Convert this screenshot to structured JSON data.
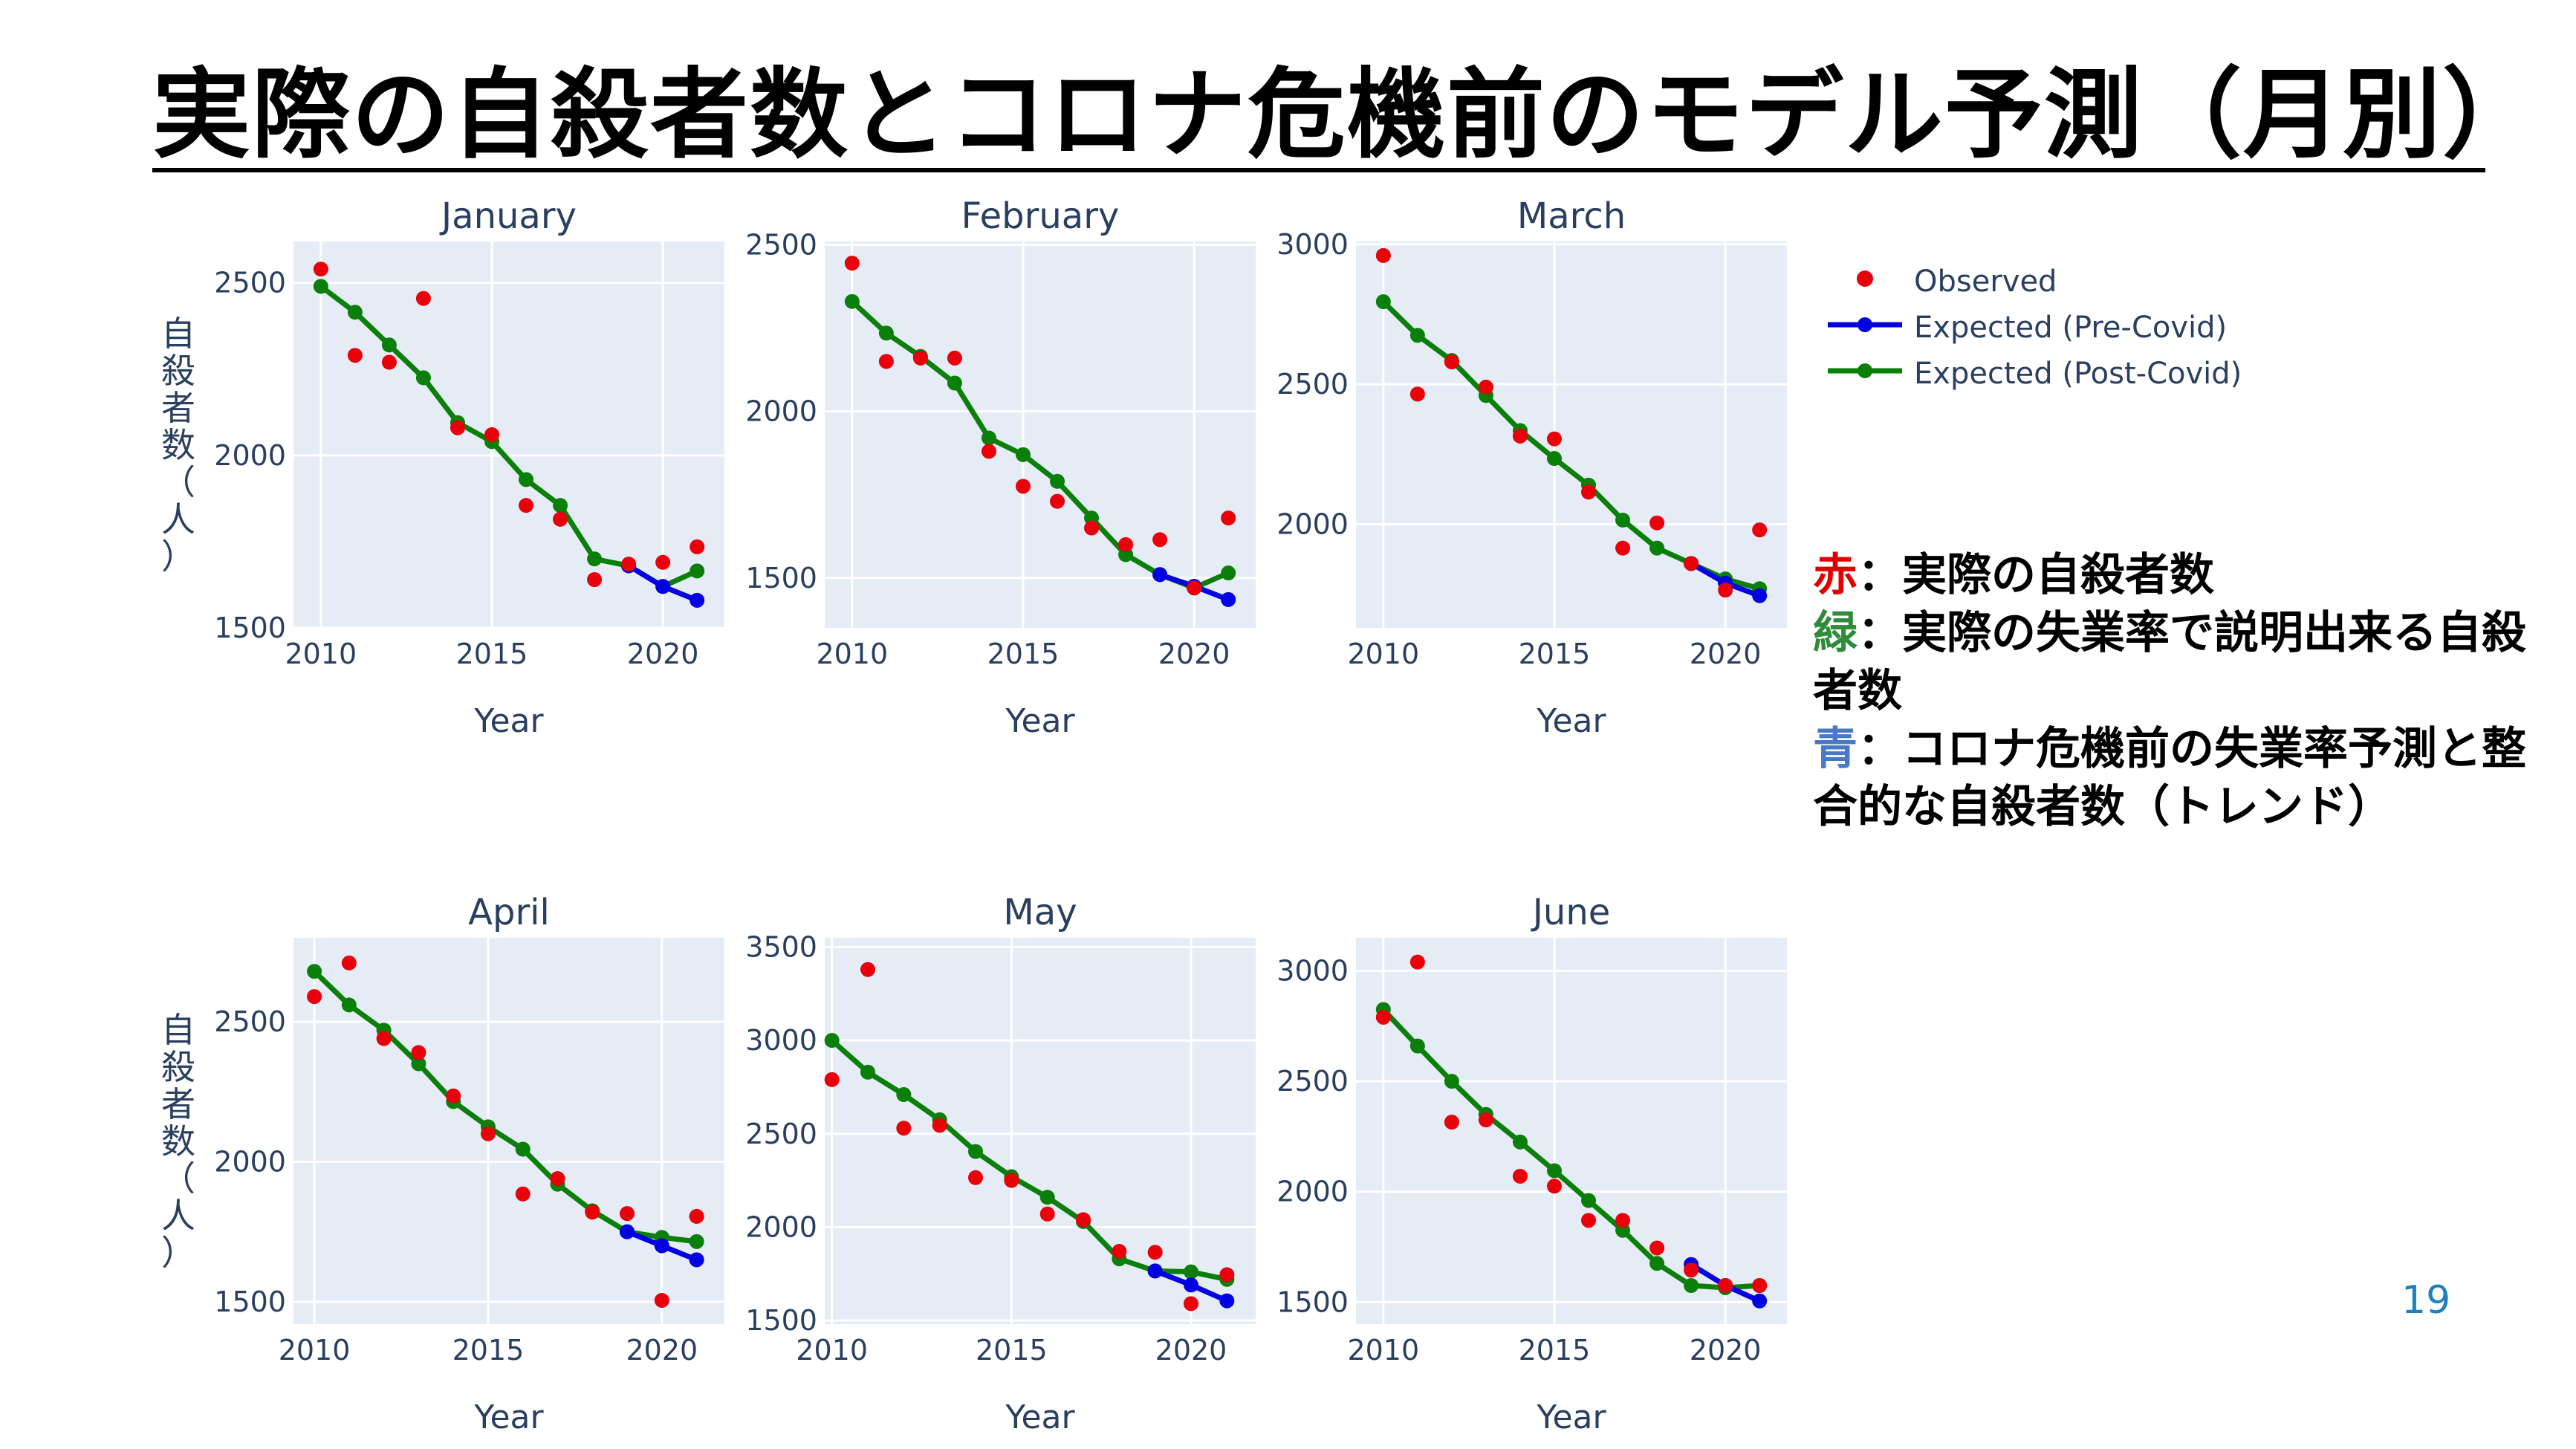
{
  "slide": {
    "title": "実際の自殺者数とコロナ危機前のモデル予測（月別）",
    "page_number": "19"
  },
  "legend": {
    "items": [
      {
        "label": "Observed",
        "color": "#e8000b",
        "kind": "marker"
      },
      {
        "label": "Expected (Pre-Covid)",
        "color": "#0000e0",
        "kind": "line"
      },
      {
        "label": "Expected (Post-Covid)",
        "color": "#0a7f0a",
        "kind": "line"
      }
    ]
  },
  "explanation": {
    "red_key": "赤",
    "red_text": "：実際の自殺者数",
    "green_key": "緑",
    "green_text": "：実際の失業率で説明出来る自殺者数",
    "blue_key": "青",
    "blue_text": "：コロナ危機前の失業率予測と整合的な自殺者数（トレンド）",
    "colors": {
      "red": "#e00000",
      "green": "#2e8b3a",
      "blue": "#4a78c8"
    }
  },
  "chart_data": [
    {
      "type": "scatter",
      "title": "January",
      "xlabel": "Year",
      "ylabel": "自殺者数（人）",
      "xlim": [
        2009.2,
        2021.8
      ],
      "ylim": [
        1500,
        2620
      ],
      "xticks": [
        2010,
        2015,
        2020
      ],
      "yticks": [
        1500,
        2000,
        2500
      ],
      "x": [
        2010,
        2011,
        2012,
        2013,
        2014,
        2015,
        2016,
        2017,
        2018,
        2019,
        2020,
        2021
      ],
      "series": [
        {
          "name": "Observed",
          "mode": "markers",
          "color": "#e8000b",
          "values": [
            2540,
            2290,
            2270,
            2455,
            2080,
            2060,
            1855,
            1815,
            1640,
            1685,
            1690,
            1735
          ]
        },
        {
          "name": "Expected (Pre-Covid)",
          "mode": "lines+markers",
          "color": "#0000e0",
          "x": [
            2019,
            2020,
            2021
          ],
          "values": [
            1680,
            1620,
            1580
          ]
        },
        {
          "name": "Expected (Post-Covid)",
          "mode": "lines+markers",
          "color": "#0a7f0a",
          "values": [
            2490,
            2415,
            2320,
            2225,
            2095,
            2040,
            1930,
            1855,
            1700,
            1680,
            1620,
            1665
          ]
        }
      ]
    },
    {
      "type": "scatter",
      "title": "February",
      "xlabel": "Year",
      "ylabel": "",
      "xlim": [
        2009.2,
        2021.8
      ],
      "ylim": [
        1350,
        2510
      ],
      "xticks": [
        2010,
        2015,
        2020
      ],
      "yticks": [
        1500,
        2000,
        2500
      ],
      "x": [
        2010,
        2011,
        2012,
        2013,
        2014,
        2015,
        2016,
        2017,
        2018,
        2019,
        2020,
        2021
      ],
      "series": [
        {
          "name": "Observed",
          "mode": "markers",
          "color": "#e8000b",
          "values": [
            2445,
            2150,
            2160,
            2160,
            1880,
            1775,
            1730,
            1650,
            1600,
            1615,
            1470,
            1680
          ]
        },
        {
          "name": "Expected (Pre-Covid)",
          "mode": "lines+markers",
          "color": "#0000e0",
          "x": [
            2019,
            2020,
            2021
          ],
          "values": [
            1510,
            1475,
            1435
          ]
        },
        {
          "name": "Expected (Post-Covid)",
          "mode": "lines+markers",
          "color": "#0a7f0a",
          "values": [
            2330,
            2235,
            2165,
            2085,
            1920,
            1870,
            1790,
            1680,
            1570,
            1510,
            1470,
            1515
          ]
        }
      ]
    },
    {
      "type": "scatter",
      "title": "March",
      "xlabel": "Year",
      "ylabel": "",
      "xlim": [
        2009.2,
        2021.8
      ],
      "ylim": [
        1630,
        3010
      ],
      "xticks": [
        2010,
        2015,
        2020
      ],
      "yticks": [
        2000,
        2500,
        3000
      ],
      "x": [
        2010,
        2011,
        2012,
        2013,
        2014,
        2015,
        2016,
        2017,
        2018,
        2019,
        2020,
        2021
      ],
      "series": [
        {
          "name": "Observed",
          "mode": "markers",
          "color": "#e8000b",
          "values": [
            2960,
            2465,
            2580,
            2490,
            2315,
            2305,
            2115,
            1915,
            2005,
            1860,
            1765,
            1980
          ]
        },
        {
          "name": "Expected (Pre-Covid)",
          "mode": "lines+markers",
          "color": "#0000e0",
          "x": [
            2019,
            2020,
            2021
          ],
          "values": [
            1860,
            1790,
            1745
          ]
        },
        {
          "name": "Expected (Post-Covid)",
          "mode": "lines+markers",
          "color": "#0a7f0a",
          "values": [
            2795,
            2675,
            2585,
            2460,
            2335,
            2235,
            2140,
            2015,
            1915,
            1860,
            1805,
            1770
          ]
        }
      ]
    },
    {
      "type": "scatter",
      "title": "April",
      "xlabel": "Year",
      "ylabel": "自殺者数（人）",
      "xlim": [
        2009.4,
        2021.8
      ],
      "ylim": [
        1420,
        2800
      ],
      "xticks": [
        2010,
        2015,
        2020
      ],
      "yticks": [
        1500,
        2000,
        2500
      ],
      "x": [
        2010,
        2011,
        2012,
        2013,
        2014,
        2015,
        2016,
        2017,
        2018,
        2019,
        2020,
        2021
      ],
      "series": [
        {
          "name": "Observed",
          "mode": "markers",
          "color": "#e8000b",
          "values": [
            2590,
            2710,
            2440,
            2390,
            2235,
            2100,
            1885,
            1940,
            1820,
            1815,
            1505,
            1805
          ]
        },
        {
          "name": "Expected (Pre-Covid)",
          "mode": "lines+markers",
          "color": "#0000e0",
          "x": [
            2019,
            2020,
            2021
          ],
          "values": [
            1750,
            1700,
            1650
          ]
        },
        {
          "name": "Expected (Post-Covid)",
          "mode": "lines+markers",
          "color": "#0a7f0a",
          "values": [
            2680,
            2560,
            2470,
            2350,
            2215,
            2125,
            2045,
            1920,
            1825,
            1750,
            1730,
            1715
          ]
        }
      ]
    },
    {
      "type": "scatter",
      "title": "May",
      "xlabel": "Year",
      "ylabel": "",
      "xlim": [
        2009.8,
        2021.8
      ],
      "ylim": [
        1480,
        3550
      ],
      "xticks": [
        2010,
        2015,
        2020
      ],
      "yticks": [
        1500,
        2000,
        2500,
        3000,
        3500
      ],
      "x": [
        2010,
        2011,
        2012,
        2013,
        2014,
        2015,
        2016,
        2017,
        2018,
        2019,
        2020,
        2021
      ],
      "series": [
        {
          "name": "Observed",
          "mode": "markers",
          "color": "#e8000b",
          "values": [
            2790,
            3380,
            2530,
            2545,
            2265,
            2250,
            2070,
            2040,
            1870,
            1865,
            1590,
            1745
          ]
        },
        {
          "name": "Expected (Pre-Covid)",
          "mode": "lines+markers",
          "color": "#0000e0",
          "x": [
            2019,
            2020,
            2021
          ],
          "values": [
            1765,
            1690,
            1605
          ]
        },
        {
          "name": "Expected (Post-Covid)",
          "mode": "lines+markers",
          "color": "#0a7f0a",
          "values": [
            3000,
            2830,
            2710,
            2575,
            2405,
            2270,
            2160,
            2030,
            1830,
            1765,
            1760,
            1720
          ]
        }
      ]
    },
    {
      "type": "scatter",
      "title": "June",
      "xlabel": "Year",
      "ylabel": "",
      "xlim": [
        2009.2,
        2021.8
      ],
      "ylim": [
        1400,
        3150
      ],
      "xticks": [
        2010,
        2015,
        2020
      ],
      "yticks": [
        1500,
        2000,
        2500,
        3000
      ],
      "x": [
        2010,
        2011,
        2012,
        2013,
        2014,
        2015,
        2016,
        2017,
        2018,
        2019,
        2020,
        2021
      ],
      "series": [
        {
          "name": "Observed",
          "mode": "markers",
          "color": "#e8000b",
          "values": [
            2790,
            3040,
            2315,
            2325,
            2070,
            2025,
            1870,
            1870,
            1745,
            1645,
            1575,
            1575
          ]
        },
        {
          "name": "Expected (Pre-Covid)",
          "mode": "lines+markers",
          "color": "#0000e0",
          "x": [
            2019,
            2020,
            2021
          ],
          "values": [
            1670,
            1575,
            1505
          ]
        },
        {
          "name": "Expected (Post-Covid)",
          "mode": "lines+markers",
          "color": "#0a7f0a",
          "values": [
            2825,
            2660,
            2500,
            2350,
            2225,
            2095,
            1960,
            1825,
            1675,
            1575,
            1565,
            1575
          ]
        }
      ]
    }
  ]
}
